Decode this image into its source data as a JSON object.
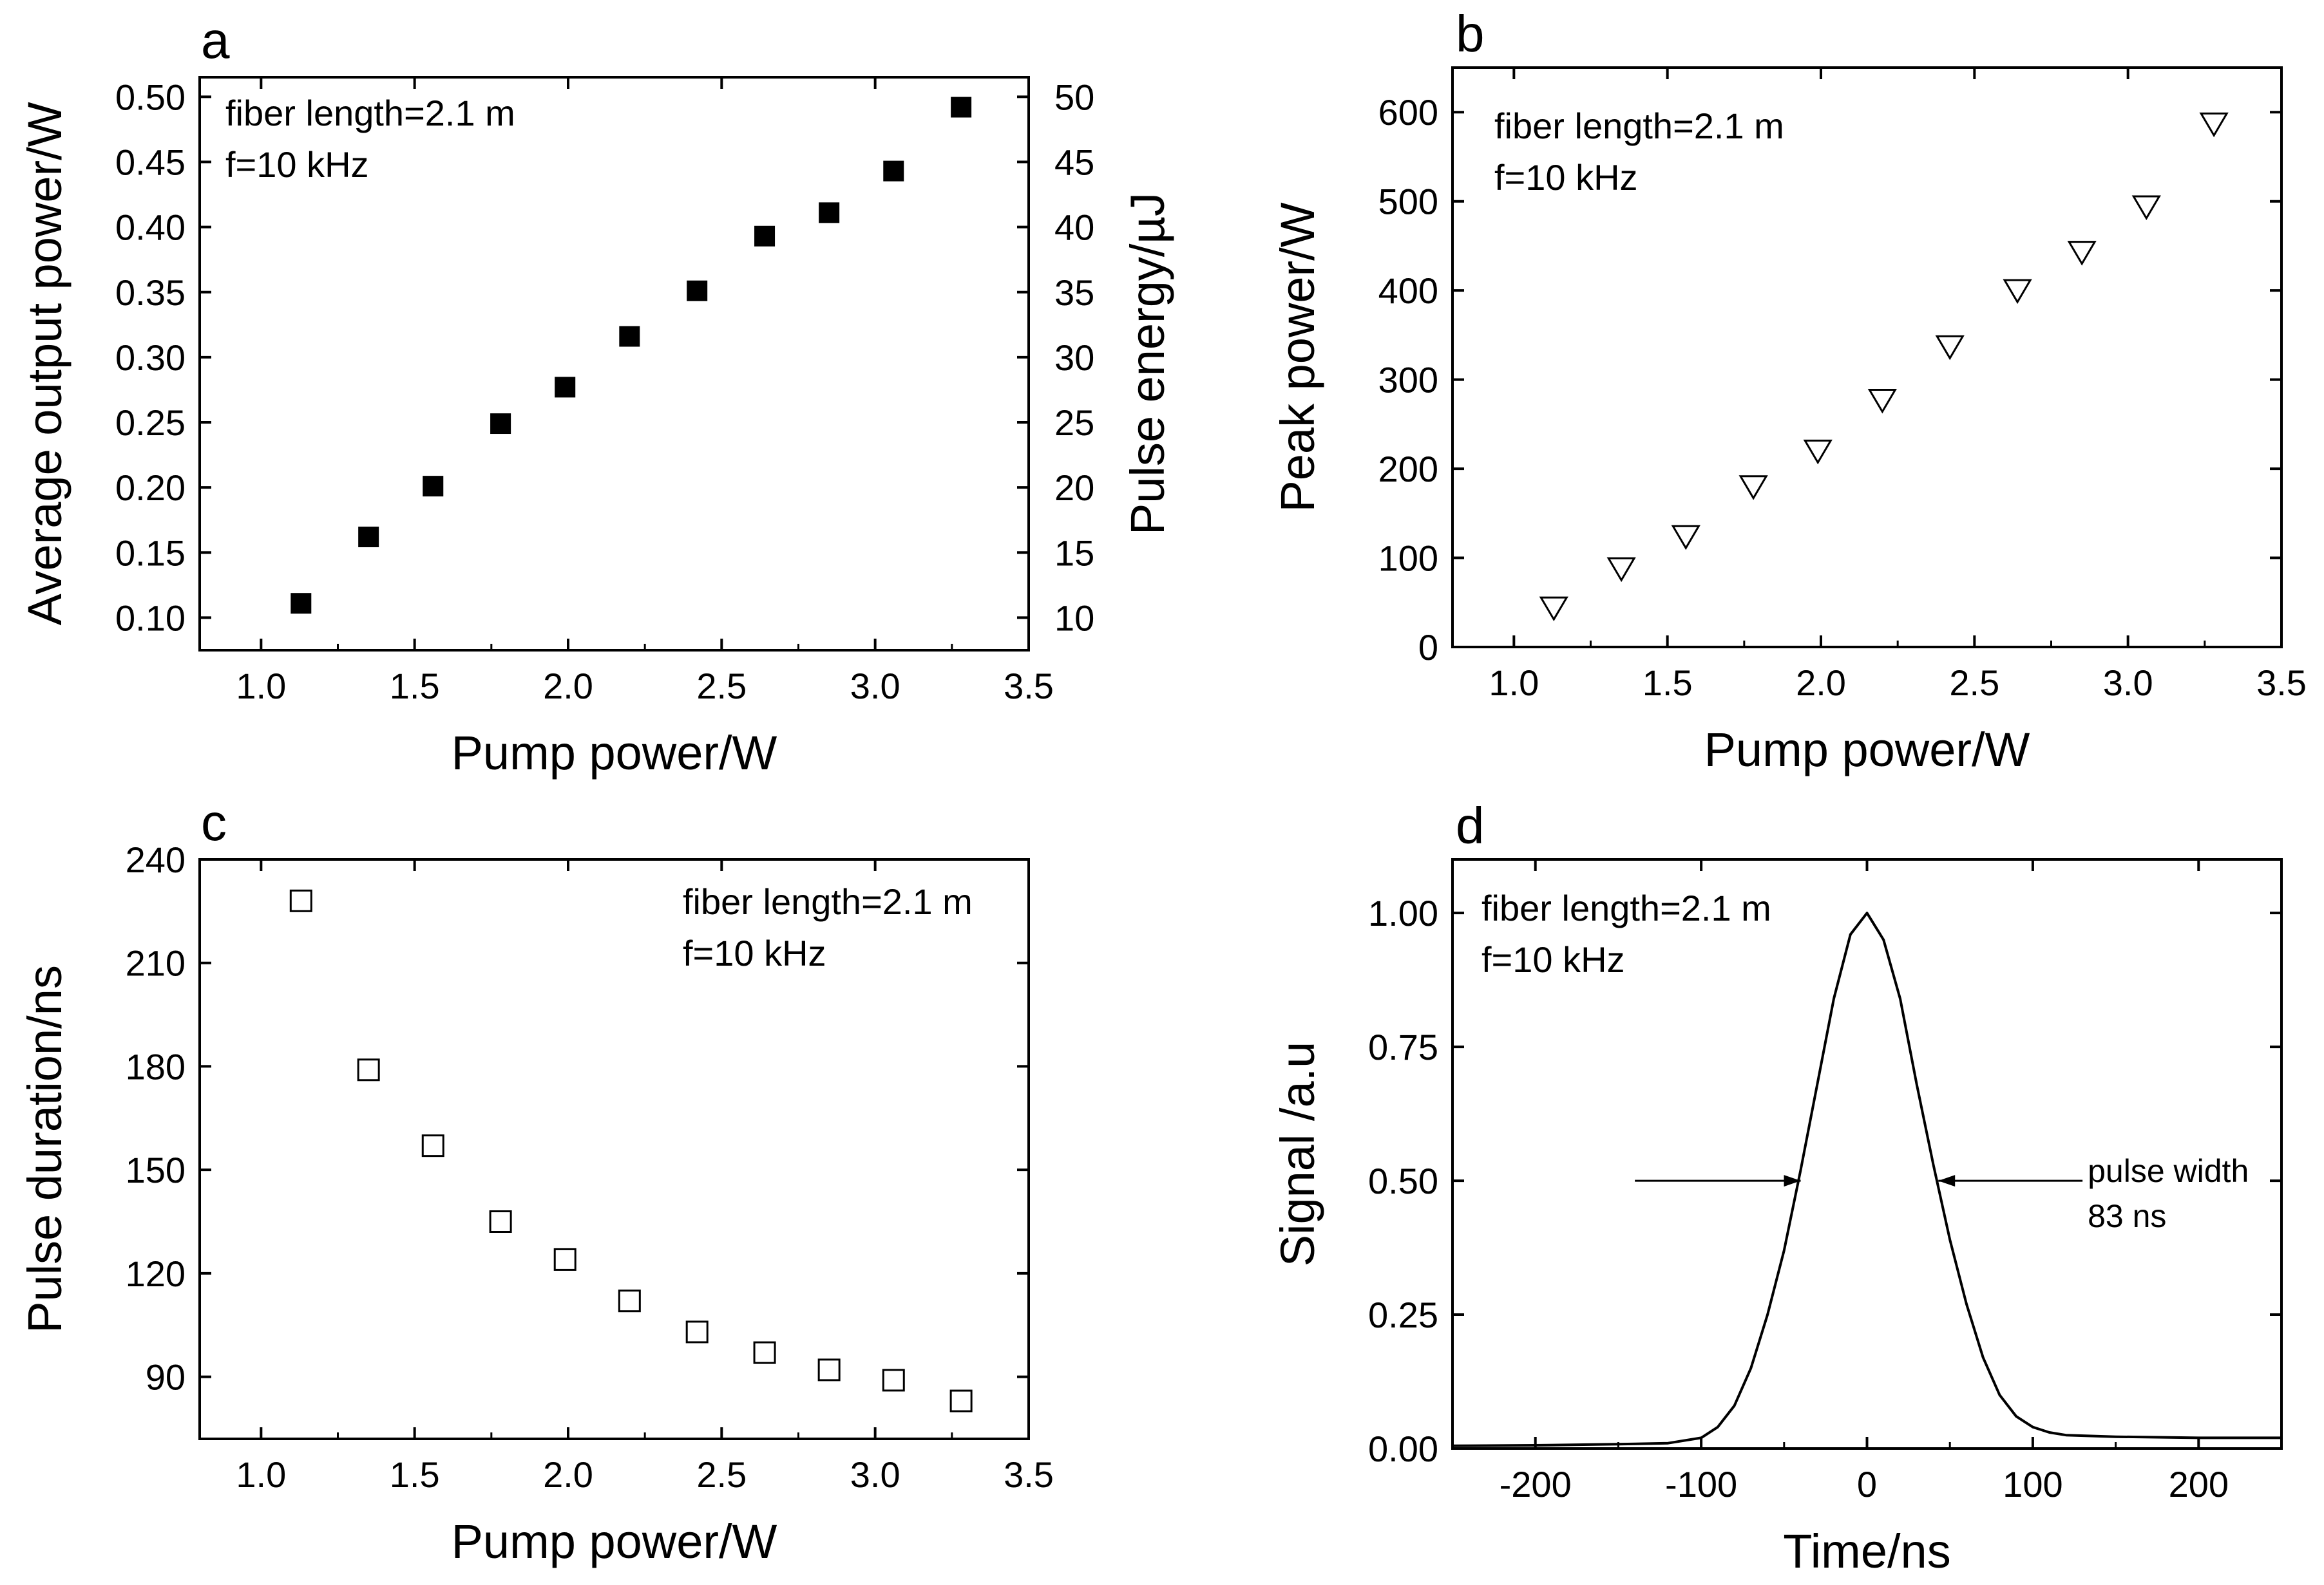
{
  "chart_data": [
    {
      "id": "a",
      "panel_label": "a",
      "type": "scatter",
      "xlabel": "Pump power/W",
      "ylabel": "Average output power/W",
      "ylabel_right": "Pulse energy/µJ",
      "xlim": [
        0.8,
        3.5
      ],
      "ylim": [
        0.075,
        0.515
      ],
      "ylim_right": [
        7.5,
        51.5
      ],
      "xticks": [
        "1.0",
        "1.5",
        "2.0",
        "2.5",
        "3.0",
        "3.5"
      ],
      "yticks": [
        "0.10",
        "0.15",
        "0.20",
        "0.25",
        "0.30",
        "0.35",
        "0.40",
        "0.45",
        "0.50"
      ],
      "yticks_right": [
        "10",
        "15",
        "20",
        "25",
        "30",
        "35",
        "40",
        "45",
        "50"
      ],
      "annotations": [
        "fiber length=2.1 m",
        "f=10 kHz"
      ],
      "series": [
        {
          "name": "average output power",
          "marker": "filled-square",
          "x": [
            1.13,
            1.35,
            1.56,
            1.78,
            1.99,
            2.2,
            2.42,
            2.64,
            2.85,
            3.06,
            3.28
          ],
          "y": [
            0.111,
            0.162,
            0.201,
            0.249,
            0.277,
            0.316,
            0.351,
            0.393,
            0.411,
            0.443,
            0.492
          ]
        }
      ]
    },
    {
      "id": "b",
      "panel_label": "b",
      "type": "scatter",
      "xlabel": "Pump power/W",
      "ylabel": "Peak power/W",
      "xlim": [
        0.8,
        3.5
      ],
      "ylim": [
        0,
        650
      ],
      "xticks": [
        "1.0",
        "1.5",
        "2.0",
        "2.5",
        "3.0",
        "3.5"
      ],
      "yticks": [
        "0",
        "100",
        "200",
        "300",
        "400",
        "500",
        "600"
      ],
      "annotations": [
        "fiber length=2.1 m",
        "f=10 kHz"
      ],
      "series": [
        {
          "name": "peak power",
          "marker": "open-down-triangle",
          "x": [
            1.13,
            1.35,
            1.56,
            1.78,
            1.99,
            2.2,
            2.42,
            2.64,
            2.85,
            3.06,
            3.28
          ],
          "y": [
            44,
            88,
            124,
            180,
            220,
            277,
            337,
            400,
            443,
            494,
            587
          ]
        }
      ]
    },
    {
      "id": "c",
      "panel_label": "c",
      "type": "scatter",
      "xlabel": "Pump power/W",
      "ylabel": "Pulse duration/ns",
      "xlim": [
        0.8,
        3.5
      ],
      "ylim": [
        72,
        240
      ],
      "xticks": [
        "1.0",
        "1.5",
        "2.0",
        "2.5",
        "3.0",
        "3.5"
      ],
      "yticks": [
        "90",
        "120",
        "150",
        "180",
        "210",
        "240"
      ],
      "annotations": [
        "fiber length=2.1 m",
        "f=10 kHz"
      ],
      "series": [
        {
          "name": "pulse duration",
          "marker": "open-square",
          "x": [
            1.13,
            1.35,
            1.56,
            1.78,
            1.99,
            2.2,
            2.42,
            2.64,
            2.85,
            3.06,
            3.28
          ],
          "y": [
            228,
            179,
            157,
            135,
            124,
            112,
            103,
            97,
            92,
            89,
            83
          ]
        }
      ]
    },
    {
      "id": "d",
      "panel_label": "d",
      "type": "line",
      "xlabel": "Time/ns",
      "ylabel": "Signal /a.u",
      "xlim": [
        -250,
        250
      ],
      "ylim": [
        0,
        1.1
      ],
      "xticks": [
        "-200",
        "-100",
        "0",
        "100",
        "200"
      ],
      "yticks": [
        "0.00",
        "0.25",
        "0.50",
        "0.75",
        "1.00"
      ],
      "annotations": [
        "fiber length=2.1 m",
        "f=10 kHz",
        "pulse width",
        "83 ns"
      ],
      "series": [
        {
          "name": "pulse waveform",
          "x": [
            -250,
            -200,
            -150,
            -120,
            -100,
            -90,
            -80,
            -70,
            -60,
            -50,
            -40,
            -30,
            -20,
            -10,
            0,
            10,
            20,
            30,
            40,
            50,
            60,
            70,
            80,
            90,
            100,
            110,
            120,
            150,
            200,
            250
          ],
          "y": [
            0.005,
            0.006,
            0.008,
            0.01,
            0.02,
            0.04,
            0.08,
            0.15,
            0.25,
            0.37,
            0.52,
            0.68,
            0.84,
            0.96,
            1.0,
            0.95,
            0.84,
            0.68,
            0.53,
            0.39,
            0.27,
            0.17,
            0.1,
            0.06,
            0.04,
            0.03,
            0.025,
            0.022,
            0.02,
            0.02
          ]
        }
      ],
      "arrows": {
        "left_from": [
          -140,
          0.5
        ],
        "left_to": [
          -40,
          0.5
        ],
        "right_from": [
          130,
          0.5
        ],
        "right_to": [
          43,
          0.5
        ]
      }
    }
  ]
}
